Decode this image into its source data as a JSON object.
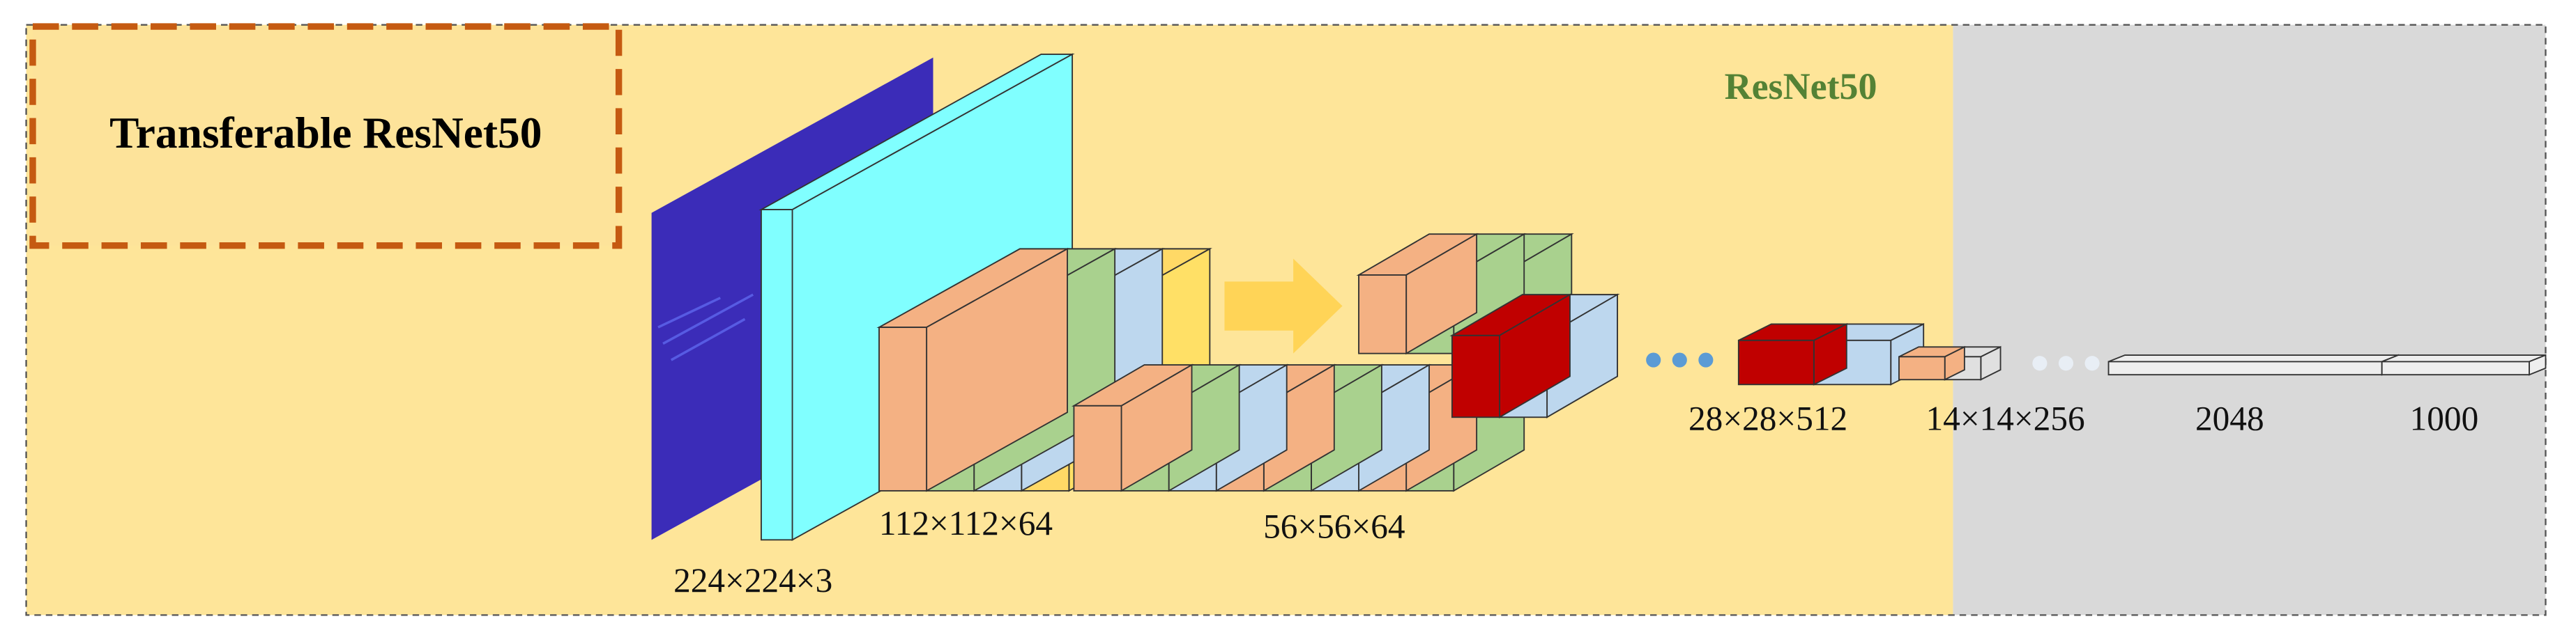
{
  "title": "Transferable ResNet50",
  "section_label": "ResNet50",
  "layers": [
    {
      "label": "224×224×3"
    },
    {
      "label": "112×112×64"
    },
    {
      "label": "56×56×64"
    },
    {
      "label": "28×28×512"
    },
    {
      "label": "14×14×256"
    },
    {
      "label": "2048"
    },
    {
      "label": "1000"
    }
  ]
}
